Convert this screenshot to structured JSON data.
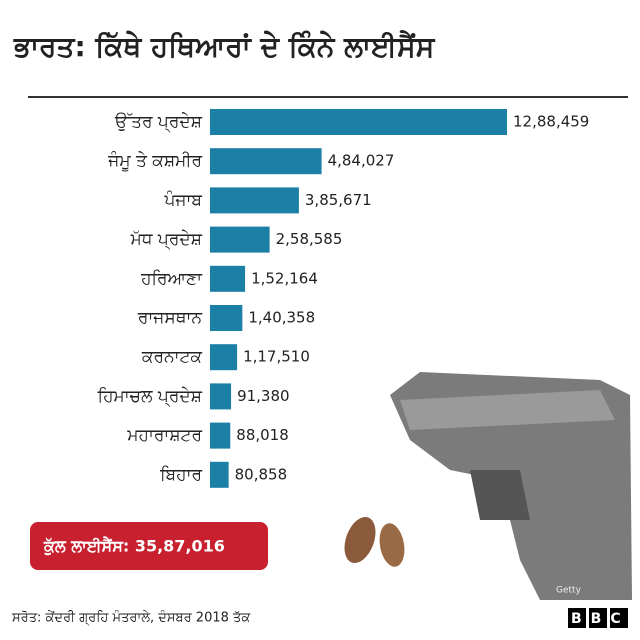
{
  "chart_data": {
    "type": "bar",
    "orientation": "horizontal",
    "title": "ਭਾਰਤ: ਕਿੱਥੇ ਹਥਿਆਰਾਂ ਦੇ ਕਿੰਨੇ ਲਾਈਸੈਂਸ",
    "categories": [
      "ਉੱਤਰ ਪ੍ਰਦੇਸ਼",
      "ਜੰਮੂ ਤੇ ਕਸ਼ਮੀਰ",
      "ਪੰਜਾਬ",
      "ਮੱਧ ਪ੍ਰਦੇਸ਼",
      "ਹਰਿਆਣਾ",
      "ਰਾਜਸਥਾਨ",
      "ਕਰਨਾਟਕ",
      "ਹਿਮਾਚਲ ਪ੍ਰਦੇਸ਼",
      "ਮਹਾਰਾਸ਼ਟਰ",
      "ਬਿਹਾਰ"
    ],
    "values": [
      1288459,
      484027,
      385671,
      258585,
      152164,
      140358,
      117510,
      91380,
      88018,
      80858
    ],
    "value_labels": [
      "12,88,459",
      "4,84,027",
      "3,85,671",
      "2,58,585",
      "1,52,164",
      "1,40,358",
      "1,17,510",
      "91,380",
      "88,018",
      "80,858"
    ],
    "color": "#1b7fa6",
    "total": "ਕੁੱਲ ਲਾਈਸੈਂਸ: 35,87,016",
    "source": "ਸਰੋਤ: ਕੇਂਦਰੀ ਗ੍ਰਹਿ ਮੰਤਰਾਲੇ, ਦੰਸਬਰ 2018 ਤੱਕ",
    "credit": "Getty",
    "logo": "BBC"
  }
}
